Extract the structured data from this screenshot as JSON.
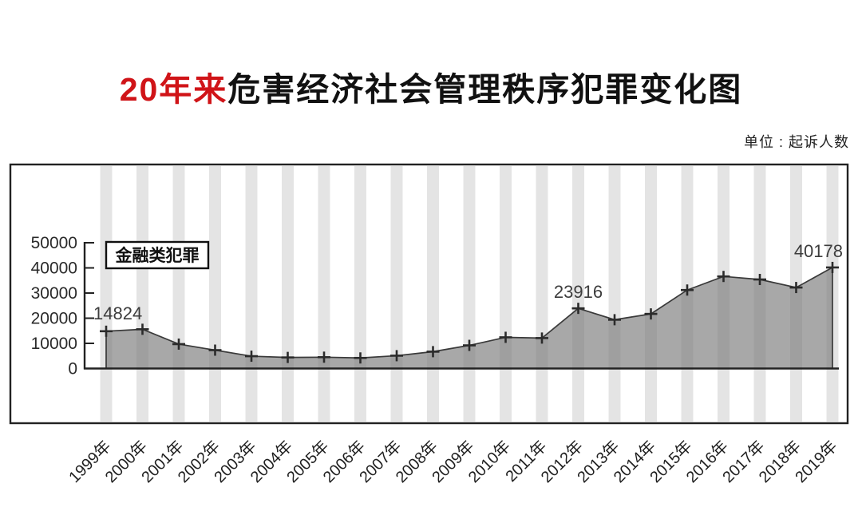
{
  "title": {
    "highlight": "20年来",
    "rest": "危害经济社会管理秩序犯罪变化图"
  },
  "unit_label": "单位 : 起诉人数",
  "chart_data": {
    "type": "area",
    "title": "20年来危害经济社会管理秩序犯罪变化图",
    "unit": "单位 : 起诉人数",
    "series_name": "金融类犯罪",
    "categories": [
      "1999年",
      "2000年",
      "2001年",
      "2002年",
      "2003年",
      "2004年",
      "2005年",
      "2006年",
      "2007年",
      "2008年",
      "2009年",
      "2010年",
      "2011年",
      "2012年",
      "2013年",
      "2014年",
      "2015年",
      "2016年",
      "2017年",
      "2018年",
      "2019年"
    ],
    "values": [
      14824,
      15600,
      9700,
      7300,
      4900,
      4400,
      4500,
      4200,
      5100,
      6700,
      9200,
      12400,
      12100,
      23916,
      19400,
      21700,
      31200,
      36600,
      35400,
      32200,
      40178
    ],
    "annotations": [
      {
        "category": "1999年",
        "text": "14824"
      },
      {
        "category": "2012年",
        "text": "23916"
      },
      {
        "category": "2019年",
        "text": "40178"
      }
    ],
    "ylim": [
      0,
      50000
    ],
    "yticks": [
      "0",
      "10000",
      "20000",
      "30000",
      "40000",
      "50000"
    ],
    "grid": "vertical-stripes",
    "legend_position": "top-left-inside",
    "colors": {
      "title_highlight": "#d01418",
      "area_fill": "#7f7f7f",
      "outline": "#3a3a3a",
      "marker": "#2b2b2b",
      "stripe": "#e4e4e4",
      "frame": "#222222",
      "annotation": "#3d3d3d",
      "axis_text": "#2a2a2a"
    }
  }
}
